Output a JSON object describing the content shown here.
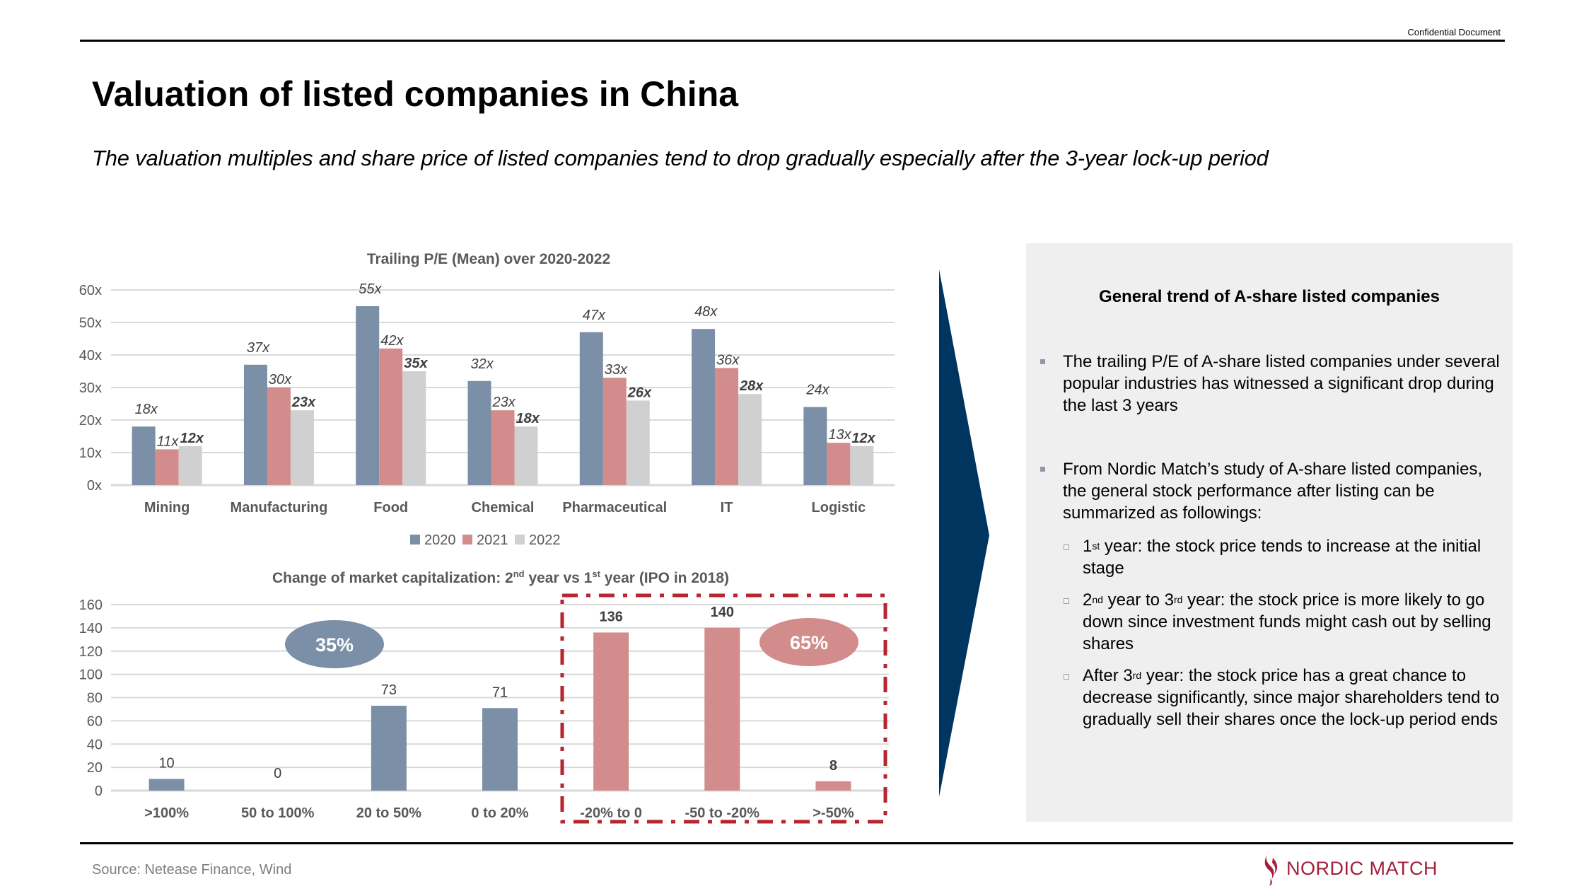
{
  "header": {
    "confidential_label": "Confidential Document",
    "title": "Valuation of listed companies in China",
    "subtitle": "The valuation multiples and share price of listed companies tend to drop gradually especially after the 3-year lock-up period"
  },
  "panel": {
    "title": "General trend of A-share listed companies",
    "bullets": [
      "The trailing P/E of A-share listed companies under several popular industries has witnessed a significant drop during the last 3 years",
      "From Nordic Match’s study of A-share listed companies, the general stock performance after listing can be summarized as followings:"
    ],
    "sub_bullets": [
      {
        "ord_num": "1",
        "ord_suffix": "st",
        "text": " year: the stock price tends to increase at the initial stage"
      },
      {
        "ord_num": "2",
        "ord_suffix": "nd",
        "mid": " year to 3",
        "mid_suffix": "rd",
        "text": " year: the stock price is more likely to go down since investment funds might cash out by selling shares"
      },
      {
        "prefix": "After 3",
        "prefix_suffix": "rd",
        "text": " year: the stock price has a great chance to decrease significantly, since major shareholders tend to gradually sell their shares once the lock-up period ends"
      }
    ]
  },
  "footer": {
    "source": "Source: Netease Finance, Wind",
    "logo_text": "NORDIC MATCH"
  },
  "colors": {
    "series_2020": "#7b8fa6",
    "series_2021": "#d38c8c",
    "series_2022": "#d0d0d0",
    "arrow": "#003560",
    "dash_box": "#b7252f",
    "brand": "#a51e3a",
    "panel_bg": "#efefef"
  },
  "chart_data": [
    {
      "type": "bar",
      "title": "Trailing P/E (Mean) over 2020-2022",
      "categories": [
        "Mining",
        "Manufacturing",
        "Food",
        "Chemical",
        "Pharmaceutical",
        "IT",
        "Logistic"
      ],
      "series": [
        {
          "name": "2020",
          "values": [
            18,
            37,
            55,
            32,
            47,
            48,
            24
          ]
        },
        {
          "name": "2021",
          "values": [
            11,
            30,
            42,
            23,
            33,
            36,
            13
          ]
        },
        {
          "name": "2022",
          "values": [
            12,
            23,
            35,
            18,
            26,
            28,
            12
          ]
        }
      ],
      "value_suffix": "x",
      "ylim": [
        0,
        60
      ],
      "yticks": [
        "0x",
        "10x",
        "20x",
        "30x",
        "40x",
        "50x",
        "60x"
      ],
      "xlabel": "",
      "ylabel": "",
      "grid": true,
      "legend": "bottom-center"
    },
    {
      "type": "bar",
      "title_main": "Change of market capitalization: 2",
      "title_sup1": "nd",
      "title_mid": " year vs 1",
      "title_sup2": "st",
      "title_end": " year (IPO in 2018)",
      "categories": [
        ">100%",
        "50 to 100%",
        "20 to 50%",
        "0 to 20%",
        "-20% to 0",
        "-50 to -20%",
        ">-50%"
      ],
      "values": [
        10,
        0,
        73,
        71,
        136,
        140,
        8
      ],
      "groups": [
        "positive",
        "positive",
        "positive",
        "positive",
        "negative",
        "negative",
        "negative"
      ],
      "ylim": [
        0,
        160
      ],
      "yticks": [
        "0",
        "20",
        "40",
        "60",
        "80",
        "100",
        "120",
        "140",
        "160"
      ],
      "annotations": [
        {
          "label": "35%",
          "group": "positive"
        },
        {
          "label": "65%",
          "group": "negative"
        }
      ],
      "grid": true,
      "legend": "none"
    }
  ]
}
